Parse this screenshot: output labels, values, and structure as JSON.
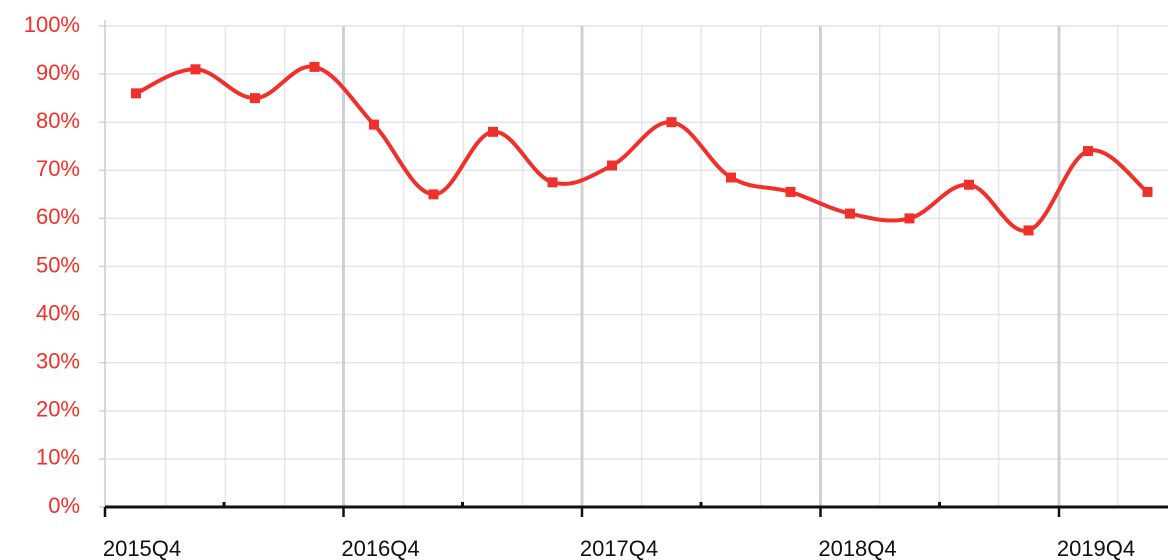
{
  "chart_data": {
    "type": "line",
    "title": "",
    "xlabel": "",
    "ylabel": "",
    "x": [
      "2015Q4",
      "2016Q1",
      "2016Q2",
      "2016Q3",
      "2016Q4",
      "2017Q1",
      "2017Q2",
      "2017Q3",
      "2017Q4",
      "2018Q1",
      "2018Q2",
      "2018Q3",
      "2018Q4",
      "2019Q1",
      "2019Q2",
      "2019Q3",
      "2019Q4",
      "2020Q1"
    ],
    "x_tick_labels": [
      "2015Q4",
      "2016Q4",
      "2017Q4",
      "2018Q4",
      "2019Q4"
    ],
    "series": [
      {
        "values": [
          86,
          91,
          85,
          91.5,
          79.5,
          65,
          78,
          67.5,
          71,
          80,
          68.5,
          65.5,
          61,
          60,
          67,
          57.5,
          74,
          65.5
        ]
      }
    ],
    "y_tick_labels": [
      "0%",
      "10%",
      "20%",
      "30%",
      "40%",
      "50%",
      "60%",
      "70%",
      "80%",
      "90%",
      "100%"
    ],
    "ylim": [
      0,
      100
    ],
    "grid": true,
    "colors": {
      "line": "#f0302b",
      "marker": "#f0302b",
      "ytick_label": "#f0302b",
      "xtick_label": "#111111",
      "grid": "#e2e2ea",
      "grid_major": "#cfcfd8",
      "axis": "#111111"
    }
  }
}
